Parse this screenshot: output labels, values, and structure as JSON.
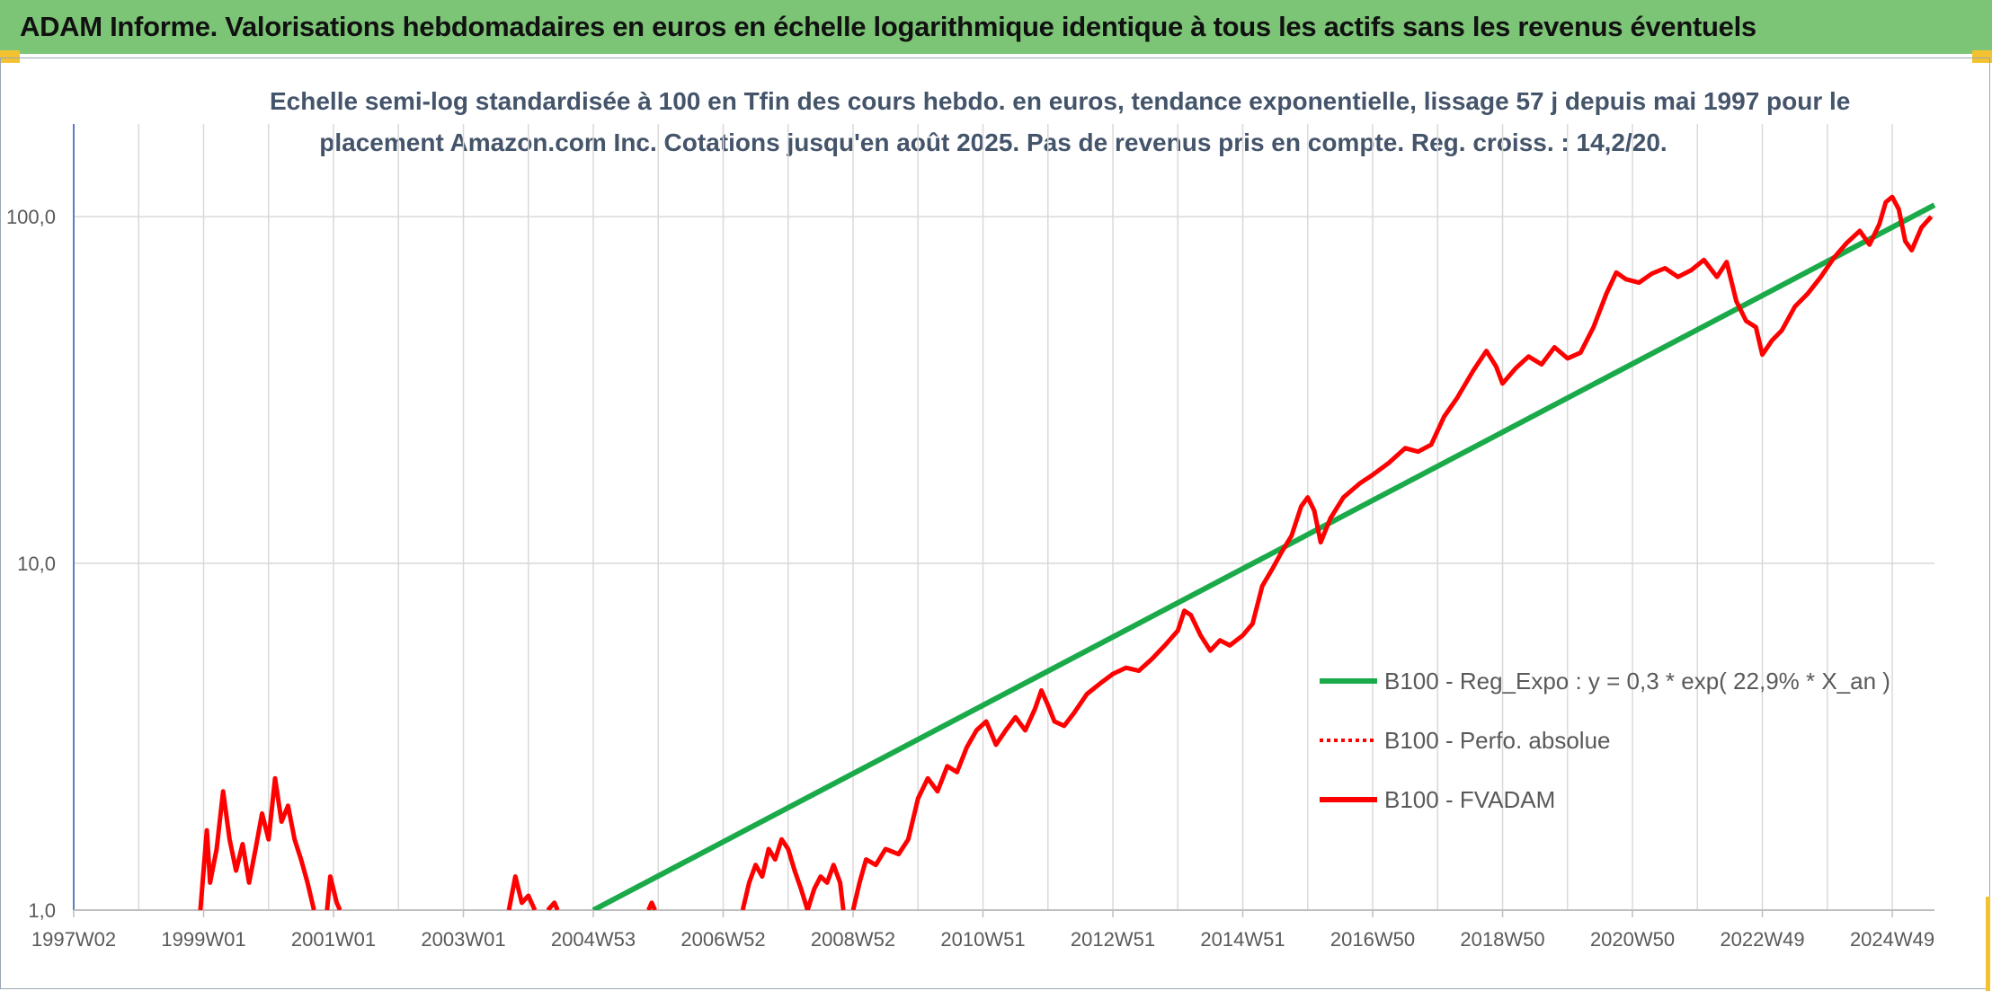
{
  "header": {
    "title": "ADAM Informe. Valorisations hebdomadaires en euros en échelle logarithmique identique à tous les actifs sans les revenus éventuels"
  },
  "colors": {
    "banner": "#7cc576",
    "accent": "#f2c230",
    "trend": "#1aaa4a",
    "perf": "#ff0000",
    "grid": "#d9d9d9",
    "axis": "#5b7fc0"
  },
  "chart_data": {
    "type": "line",
    "title_line1": "Echelle semi-log standardisée à 100 en Tfin des cours hebdo. en euros, tendance exponentielle, lissage 57 j depuis mai 1997 pour le",
    "title_line2": "placement Amazon.com Inc. Cotations jusqu'en août 2025. Pas de revenus pris en compte. Reg. croiss. : 14,2/20.",
    "y_scale": "log",
    "ylim": [
      1,
      185
    ],
    "y_ticks": [
      {
        "value": 1,
        "label": "1,0"
      },
      {
        "value": 10,
        "label": "10,0"
      },
      {
        "value": 100,
        "label": "100,0"
      }
    ],
    "xlim": [
      1997.0,
      2025.65
    ],
    "x_ticks": [
      {
        "value": 1997.0,
        "label": "1997W02"
      },
      {
        "value": 1999.0,
        "label": "1999W01"
      },
      {
        "value": 2001.0,
        "label": "2001W01"
      },
      {
        "value": 2003.0,
        "label": "2003W01"
      },
      {
        "value": 2005.0,
        "label": "2004W53"
      },
      {
        "value": 2007.0,
        "label": "2006W52"
      },
      {
        "value": 2009.0,
        "label": "2008W52"
      },
      {
        "value": 2011.0,
        "label": "2010W51"
      },
      {
        "value": 2013.0,
        "label": "2012W51"
      },
      {
        "value": 2015.0,
        "label": "2014W51"
      },
      {
        "value": 2017.0,
        "label": "2016W50"
      },
      {
        "value": 2019.0,
        "label": "2018W50"
      },
      {
        "value": 2021.0,
        "label": "2020W50"
      },
      {
        "value": 2023.0,
        "label": "2022W49"
      },
      {
        "value": 2025.0,
        "label": "2024W49"
      }
    ],
    "grid": true,
    "legend_position": "right",
    "series": [
      {
        "name": "B100 - Reg_Expo : y = 0,3 * exp( 22,9% *  X_an )",
        "style": "solid",
        "color": "#1aaa4a",
        "points": [
          [
            2005.0,
            1.0
          ],
          [
            2025.65,
            108
          ]
        ]
      },
      {
        "name": "B100 - Perfo. absolue",
        "style": "dotted",
        "color": "#ff0000",
        "points": []
      },
      {
        "name": "B100 - FVADAM",
        "style": "solid",
        "color": "#ff0000",
        "segments": [
          [
            [
              1998.95,
              1.0
            ],
            [
              1999.05,
              1.7
            ],
            [
              1999.1,
              1.2
            ],
            [
              1999.2,
              1.5
            ],
            [
              1999.3,
              2.2
            ],
            [
              1999.4,
              1.6
            ],
            [
              1999.5,
              1.3
            ],
            [
              1999.6,
              1.55
            ],
            [
              1999.7,
              1.2
            ],
            [
              1999.8,
              1.5
            ],
            [
              1999.9,
              1.9
            ],
            [
              2000.0,
              1.6
            ],
            [
              2000.1,
              2.4
            ],
            [
              2000.2,
              1.8
            ],
            [
              2000.3,
              2.0
            ],
            [
              2000.4,
              1.6
            ],
            [
              2000.5,
              1.4
            ],
            [
              2000.6,
              1.2
            ],
            [
              2000.7,
              1.0
            ]
          ],
          [
            [
              2000.9,
              1.0
            ],
            [
              2000.95,
              1.25
            ],
            [
              2001.05,
              1.05
            ],
            [
              2001.1,
              1.0
            ]
          ],
          [
            [
              2003.7,
              1.0
            ],
            [
              2003.8,
              1.25
            ],
            [
              2003.9,
              1.05
            ],
            [
              2004.0,
              1.1
            ],
            [
              2004.1,
              1.0
            ]
          ],
          [
            [
              2004.3,
              1.0
            ],
            [
              2004.4,
              1.05
            ],
            [
              2004.45,
              1.0
            ]
          ],
          [
            [
              2005.85,
              1.0
            ],
            [
              2005.9,
              1.05
            ],
            [
              2005.95,
              1.0
            ]
          ],
          [
            [
              2007.3,
              1.0
            ],
            [
              2007.4,
              1.2
            ],
            [
              2007.5,
              1.35
            ],
            [
              2007.6,
              1.25
            ],
            [
              2007.7,
              1.5
            ],
            [
              2007.8,
              1.4
            ],
            [
              2007.9,
              1.6
            ],
            [
              2008.0,
              1.5
            ],
            [
              2008.1,
              1.3
            ],
            [
              2008.2,
              1.15
            ],
            [
              2008.3,
              1.0
            ],
            [
              2008.4,
              1.15
            ],
            [
              2008.5,
              1.25
            ],
            [
              2008.6,
              1.2
            ],
            [
              2008.7,
              1.35
            ],
            [
              2008.8,
              1.2
            ],
            [
              2008.85,
              1.0
            ]
          ],
          [
            [
              2009.0,
              1.0
            ],
            [
              2009.1,
              1.2
            ],
            [
              2009.2,
              1.4
            ],
            [
              2009.35,
              1.35
            ],
            [
              2009.5,
              1.5
            ],
            [
              2009.7,
              1.45
            ],
            [
              2009.85,
              1.6
            ],
            [
              2010.0,
              2.1
            ],
            [
              2010.15,
              2.4
            ],
            [
              2010.3,
              2.2
            ],
            [
              2010.45,
              2.6
            ],
            [
              2010.6,
              2.5
            ],
            [
              2010.75,
              2.95
            ],
            [
              2010.9,
              3.3
            ],
            [
              2011.05,
              3.5
            ],
            [
              2011.2,
              3.0
            ],
            [
              2011.35,
              3.3
            ],
            [
              2011.5,
              3.6
            ],
            [
              2011.65,
              3.3
            ],
            [
              2011.8,
              3.8
            ],
            [
              2011.9,
              4.3
            ],
            [
              2012.0,
              3.9
            ],
            [
              2012.1,
              3.5
            ],
            [
              2012.25,
              3.4
            ],
            [
              2012.4,
              3.7
            ],
            [
              2012.6,
              4.2
            ],
            [
              2012.8,
              4.5
            ],
            [
              2013.0,
              4.8
            ],
            [
              2013.2,
              5.0
            ],
            [
              2013.4,
              4.9
            ],
            [
              2013.6,
              5.3
            ],
            [
              2013.8,
              5.8
            ],
            [
              2014.0,
              6.4
            ],
            [
              2014.1,
              7.3
            ],
            [
              2014.2,
              7.1
            ],
            [
              2014.35,
              6.2
            ],
            [
              2014.5,
              5.6
            ],
            [
              2014.65,
              6.0
            ],
            [
              2014.8,
              5.8
            ],
            [
              2015.0,
              6.2
            ],
            [
              2015.15,
              6.7
            ],
            [
              2015.3,
              8.6
            ],
            [
              2015.45,
              9.6
            ],
            [
              2015.6,
              10.8
            ],
            [
              2015.75,
              12.0
            ],
            [
              2015.9,
              14.6
            ],
            [
              2016.0,
              15.5
            ],
            [
              2016.1,
              14.2
            ],
            [
              2016.2,
              11.5
            ],
            [
              2016.35,
              13.5
            ],
            [
              2016.55,
              15.5
            ],
            [
              2016.8,
              17.0
            ],
            [
              2017.0,
              18.0
            ],
            [
              2017.25,
              19.5
            ],
            [
              2017.5,
              21.5
            ],
            [
              2017.7,
              21.0
            ],
            [
              2017.9,
              22.0
            ],
            [
              2018.1,
              26.5
            ],
            [
              2018.3,
              30.0
            ],
            [
              2018.55,
              36.0
            ],
            [
              2018.75,
              41.0
            ],
            [
              2018.9,
              37.0
            ],
            [
              2019.0,
              33.0
            ],
            [
              2019.2,
              36.5
            ],
            [
              2019.4,
              39.5
            ],
            [
              2019.6,
              37.5
            ],
            [
              2019.8,
              42.0
            ],
            [
              2020.0,
              39.0
            ],
            [
              2020.2,
              40.5
            ],
            [
              2020.4,
              48.0
            ],
            [
              2020.6,
              60.0
            ],
            [
              2020.75,
              69.0
            ],
            [
              2020.9,
              66.0
            ],
            [
              2021.1,
              64.5
            ],
            [
              2021.3,
              68.5
            ],
            [
              2021.5,
              71.0
            ],
            [
              2021.7,
              67.0
            ],
            [
              2021.9,
              70.0
            ],
            [
              2022.1,
              75.0
            ],
            [
              2022.3,
              67.0
            ],
            [
              2022.45,
              74.0
            ],
            [
              2022.6,
              57.0
            ],
            [
              2022.75,
              50.0
            ],
            [
              2022.9,
              48.0
            ],
            [
              2023.0,
              40.0
            ],
            [
              2023.15,
              44.0
            ],
            [
              2023.3,
              47.0
            ],
            [
              2023.5,
              55.0
            ],
            [
              2023.7,
              60.0
            ],
            [
              2023.9,
              67.0
            ],
            [
              2024.1,
              76.0
            ],
            [
              2024.3,
              84.0
            ],
            [
              2024.5,
              91.0
            ],
            [
              2024.65,
              83.0
            ],
            [
              2024.8,
              95.0
            ],
            [
              2024.9,
              110.0
            ],
            [
              2025.0,
              114.0
            ],
            [
              2025.1,
              105.0
            ],
            [
              2025.2,
              85.0
            ],
            [
              2025.3,
              80.0
            ],
            [
              2025.45,
              93.0
            ],
            [
              2025.6,
              100.0
            ]
          ]
        ]
      }
    ]
  }
}
